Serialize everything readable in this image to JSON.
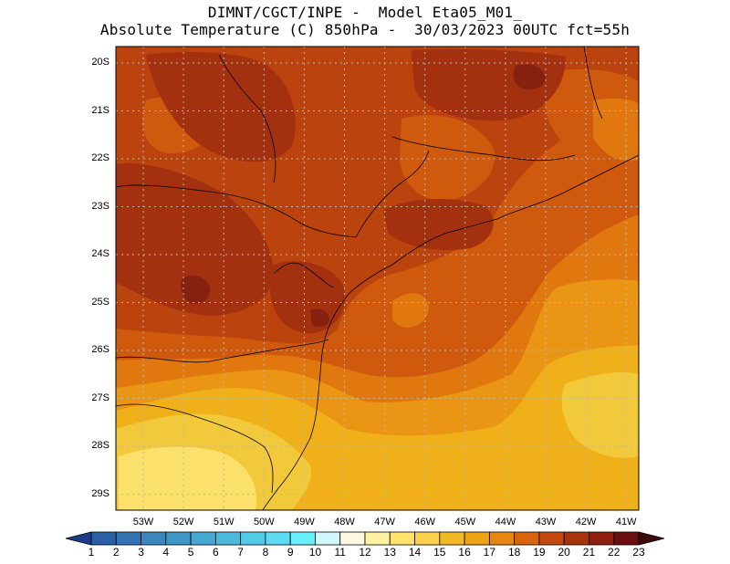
{
  "title": {
    "line1": "DIMNT/CGCT/INPE -  Model Eta05_M01_",
    "line2": "Absolute Temperature (C) 850hPa -  30/03/2023 00UTC fct=55h"
  },
  "map": {
    "lat_labels": [
      "20S",
      "21S",
      "22S",
      "23S",
      "24S",
      "25S",
      "26S",
      "27S",
      "28S",
      "29S"
    ],
    "lon_labels": [
      "53W",
      "52W",
      "51W",
      "50W",
      "49W",
      "48W",
      "47W",
      "46W",
      "45W",
      "44W",
      "43W",
      "42W",
      "41W"
    ],
    "variable": "Absolute Temperature",
    "level": "850hPa"
  },
  "colorbar": {
    "values": [
      "1",
      "2",
      "3",
      "4",
      "5",
      "6",
      "7",
      "8",
      "9",
      "10",
      "11",
      "12",
      "13",
      "14",
      "15",
      "16",
      "17",
      "18",
      "19",
      "20",
      "21",
      "22",
      "23"
    ],
    "colors": [
      "#1e3c8c",
      "#2a5fa6",
      "#3373b3",
      "#3b86bd",
      "#3f97c6",
      "#45a9d2",
      "#4bbadc",
      "#52cbe8",
      "#5bdcf2",
      "#66eefb",
      "#d2f7fb",
      "#fff8e1",
      "#fff2a0",
      "#ffe36b",
      "#fcd24b",
      "#f2b926",
      "#eda412",
      "#e88610",
      "#d8650e",
      "#c4490c",
      "#a8330e",
      "#8f1d10",
      "#6a0f10",
      "#3f0a0a"
    ]
  },
  "fill_colors": {
    "t14": "#fbe16b",
    "t15": "#f2c93a",
    "t16": "#efb01a",
    "t17": "#ea9614",
    "t18": "#e0780f",
    "t19": "#cf5a0d",
    "t20": "#bb430e",
    "t21": "#a3310f",
    "t22": "#86200f"
  }
}
